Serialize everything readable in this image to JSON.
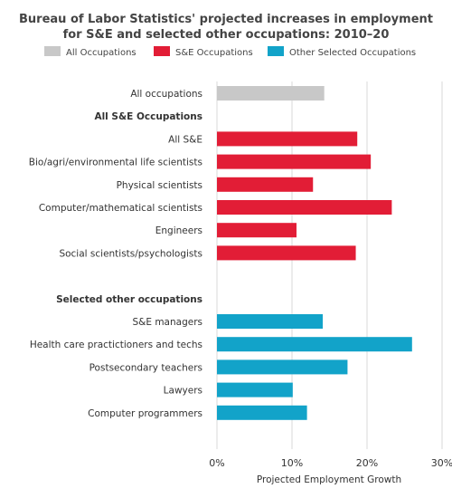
{
  "chart_data": {
    "type": "bar",
    "orientation": "horizontal",
    "title": "Bureau of Labor Statistics' projected increases in employment for S&E and selected other occupations: 2010–20",
    "title_lines": [
      "Bureau of Labor Statistics' projected increases in employment",
      "for S&E and selected other occupations: 2010–20"
    ],
    "xlabel": "Projected Employment Growth",
    "ylabel": "",
    "xlim": [
      0,
      30
    ],
    "x_ticks": [
      "0%",
      "10%",
      "20%",
      "30%"
    ],
    "grid": "vertical",
    "legend_placement": "top",
    "legend": [
      {
        "name": "All Occupations",
        "color": "#c8c8c8"
      },
      {
        "name": "S&E Occupations",
        "color": "#e21d36"
      },
      {
        "name": "Other Selected Occupations",
        "color": "#12a3c9"
      }
    ],
    "rows": [
      {
        "label": "All occupations",
        "value": 14.3,
        "group": "All Occupations",
        "color": "#c8c8c8"
      },
      {
        "label": "All S&E Occupations",
        "heading": true
      },
      {
        "label": "All S&E",
        "value": 18.7,
        "group": "S&E Occupations",
        "color": "#e21d36"
      },
      {
        "label": "Bio/agri/environmental life scientists",
        "value": 20.5,
        "group": "S&E Occupations",
        "color": "#e21d36"
      },
      {
        "label": "Physical scientists",
        "value": 12.8,
        "group": "S&E Occupations",
        "color": "#e21d36"
      },
      {
        "label": "Computer/mathematical scientists",
        "value": 23.3,
        "group": "S&E Occupations",
        "color": "#e21d36"
      },
      {
        "label": "Engineers",
        "value": 10.6,
        "group": "S&E Occupations",
        "color": "#e21d36"
      },
      {
        "label": "Social scientists/psychologists",
        "value": 18.5,
        "group": "S&E Occupations",
        "color": "#e21d36"
      },
      {
        "spacer": true
      },
      {
        "label": "Selected other occupations",
        "heading": true
      },
      {
        "label": "S&E managers",
        "value": 14.1,
        "group": "Other Selected Occupations",
        "color": "#12a3c9"
      },
      {
        "label": "Health care practictioners and techs",
        "value": 26.0,
        "group": "Other Selected Occupations",
        "color": "#12a3c9"
      },
      {
        "label": "Postsecondary teachers",
        "value": 17.4,
        "group": "Other Selected Occupations",
        "color": "#12a3c9"
      },
      {
        "label": "Lawyers",
        "value": 10.1,
        "group": "Other Selected Occupations",
        "color": "#12a3c9"
      },
      {
        "label": "Computer programmers",
        "value": 12.0,
        "group": "Other Selected Occupations",
        "color": "#12a3c9"
      }
    ]
  }
}
